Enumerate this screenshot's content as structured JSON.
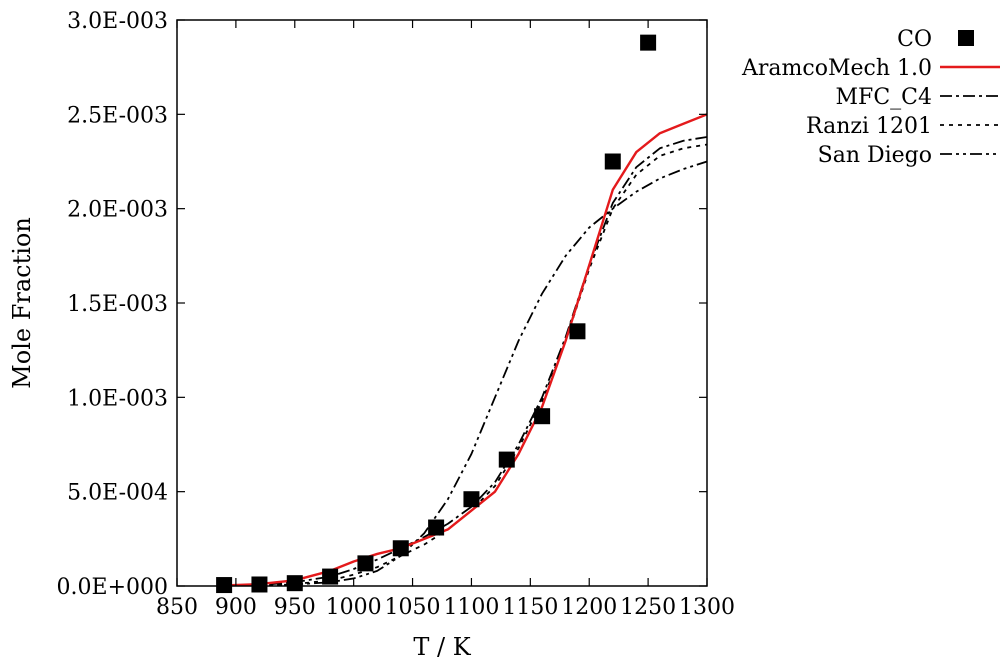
{
  "chart_data": {
    "type": "scatter",
    "title": "",
    "xlabel": "T / K",
    "ylabel": "Mole Fraction",
    "xlim": [
      850,
      1300
    ],
    "ylim": [
      0,
      0.003
    ],
    "x_ticks": [
      850,
      900,
      950,
      1000,
      1050,
      1100,
      1150,
      1200,
      1250,
      1300
    ],
    "x_tick_labels": [
      "850",
      "900",
      "950",
      "1000",
      "1050",
      "1100",
      "1150",
      "1200",
      "1250",
      "1300"
    ],
    "y_ticks": [
      0,
      0.0005,
      0.001,
      0.0015,
      0.002,
      0.0025,
      0.003
    ],
    "y_tick_labels": [
      "0.0E+000",
      "5.0E-004",
      "1.0E-003",
      "1.5E-003",
      "2.0E-003",
      "2.5E-003",
      "3.0E-003"
    ],
    "grid": false,
    "legend_position": "outside-right",
    "series": [
      {
        "name": "CO",
        "kind": "points",
        "color": "#000000",
        "x": [
          890,
          920,
          950,
          980,
          1010,
          1040,
          1070,
          1100,
          1130,
          1160,
          1190,
          1220,
          1250
        ],
        "y": [
          5e-06,
          8e-06,
          1.5e-05,
          5e-05,
          0.00012,
          0.0002,
          0.00031,
          0.00046,
          0.00067,
          0.0009,
          0.00135,
          0.00225,
          0.00288
        ]
      },
      {
        "name": "AramcoMech 1.0",
        "kind": "line",
        "color": "#e41a1c",
        "dash": "solid",
        "x": [
          890,
          920,
          950,
          980,
          1000,
          1020,
          1040,
          1060,
          1080,
          1100,
          1120,
          1140,
          1160,
          1180,
          1200,
          1220,
          1240,
          1260,
          1280,
          1300
        ],
        "y": [
          3e-06,
          1e-05,
          3e-05,
          8e-05,
          0.00013,
          0.00017,
          0.0002,
          0.00025,
          0.0003,
          0.0004,
          0.0005,
          0.0007,
          0.00095,
          0.0013,
          0.0017,
          0.0021,
          0.0023,
          0.0024,
          0.00245,
          0.0025
        ]
      },
      {
        "name": "MFC_C4",
        "kind": "line",
        "color": "#000000",
        "dash": "dash-dot",
        "x": [
          890,
          920,
          950,
          980,
          1000,
          1020,
          1040,
          1060,
          1080,
          1100,
          1120,
          1140,
          1160,
          1180,
          1200,
          1220,
          1240,
          1260,
          1280,
          1300
        ],
        "y": [
          0.0,
          5e-06,
          2e-05,
          5e-05,
          9e-05,
          0.00014,
          0.0002,
          0.00026,
          0.00033,
          0.00042,
          0.00055,
          0.00075,
          0.001,
          0.00132,
          0.0017,
          0.00203,
          0.00222,
          0.00232,
          0.00236,
          0.00238
        ]
      },
      {
        "name": "Ranzi 1201",
        "kind": "line",
        "color": "#000000",
        "dash": "dotted",
        "x": [
          890,
          920,
          950,
          980,
          1000,
          1020,
          1040,
          1060,
          1080,
          1100,
          1120,
          1140,
          1160,
          1180,
          1200,
          1220,
          1240,
          1260,
          1280,
          1300
        ],
        "y": [
          0.0,
          3e-06,
          1e-05,
          3e-05,
          6e-05,
          0.0001,
          0.00016,
          0.00022,
          0.0003,
          0.0004,
          0.00053,
          0.00073,
          0.00098,
          0.0013,
          0.00168,
          0.002,
          0.00218,
          0.00228,
          0.00232,
          0.00234
        ]
      },
      {
        "name": "San Diego",
        "kind": "line",
        "color": "#000000",
        "dash": "dash-dot-dot",
        "x": [
          890,
          920,
          950,
          980,
          1000,
          1020,
          1040,
          1060,
          1080,
          1100,
          1120,
          1140,
          1160,
          1180,
          1200,
          1220,
          1240,
          1260,
          1280,
          1300
        ],
        "y": [
          0.0,
          2e-06,
          8e-06,
          2e-05,
          4e-05,
          8e-05,
          0.00016,
          0.00028,
          0.00046,
          0.0007,
          0.001,
          0.0013,
          0.00155,
          0.00175,
          0.0019,
          0.002,
          0.00209,
          0.00216,
          0.00221,
          0.00225
        ]
      }
    ]
  }
}
